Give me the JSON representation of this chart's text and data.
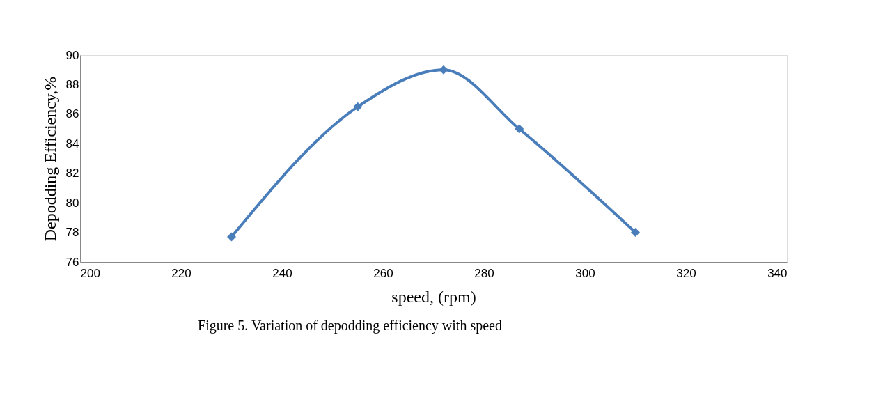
{
  "chart_data": {
    "type": "line",
    "xlabel": "speed, (rpm)",
    "ylabel": "Depodding Efficiency,%",
    "annotations": [
      "Figure 5. Variation of depodding efficiency with speed"
    ],
    "x": [
      230,
      255,
      272,
      287,
      310
    ],
    "series": [
      {
        "color": "#4a7ebb",
        "values": [
          77.7,
          86.5,
          89.0,
          85.0,
          78.0
        ]
      }
    ],
    "xlim": [
      200,
      340
    ],
    "xticks": [
      200,
      220,
      240,
      260,
      280,
      300,
      320,
      340
    ],
    "ylim": [
      76,
      90
    ],
    "yticks": [
      76,
      78,
      80,
      82,
      84,
      86,
      88,
      90
    ],
    "grid": false,
    "legend": false,
    "marker": "diamond",
    "line_style": "solid"
  }
}
